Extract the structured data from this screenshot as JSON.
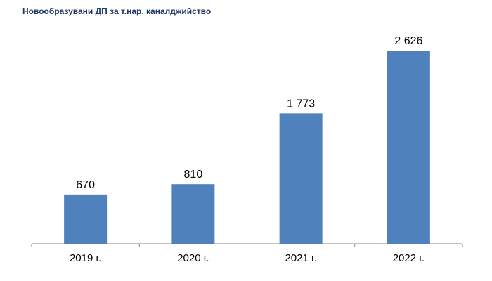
{
  "chart_data": {
    "type": "bar",
    "title": "Новообразувани ДП за т.нар. каналджийство",
    "categories": [
      "2019 г.",
      "2020 г.",
      "2021 г.",
      "2022 г."
    ],
    "values": [
      670,
      810,
      1773,
      2626
    ],
    "value_labels": [
      "670",
      "810",
      "1 773",
      "2 626"
    ],
    "xlabel": "",
    "ylabel": "",
    "ylim": [
      0,
      2800
    ],
    "grid": false,
    "legend": "none",
    "bar_color": "#4f81bd",
    "axis_color": "#868686"
  }
}
